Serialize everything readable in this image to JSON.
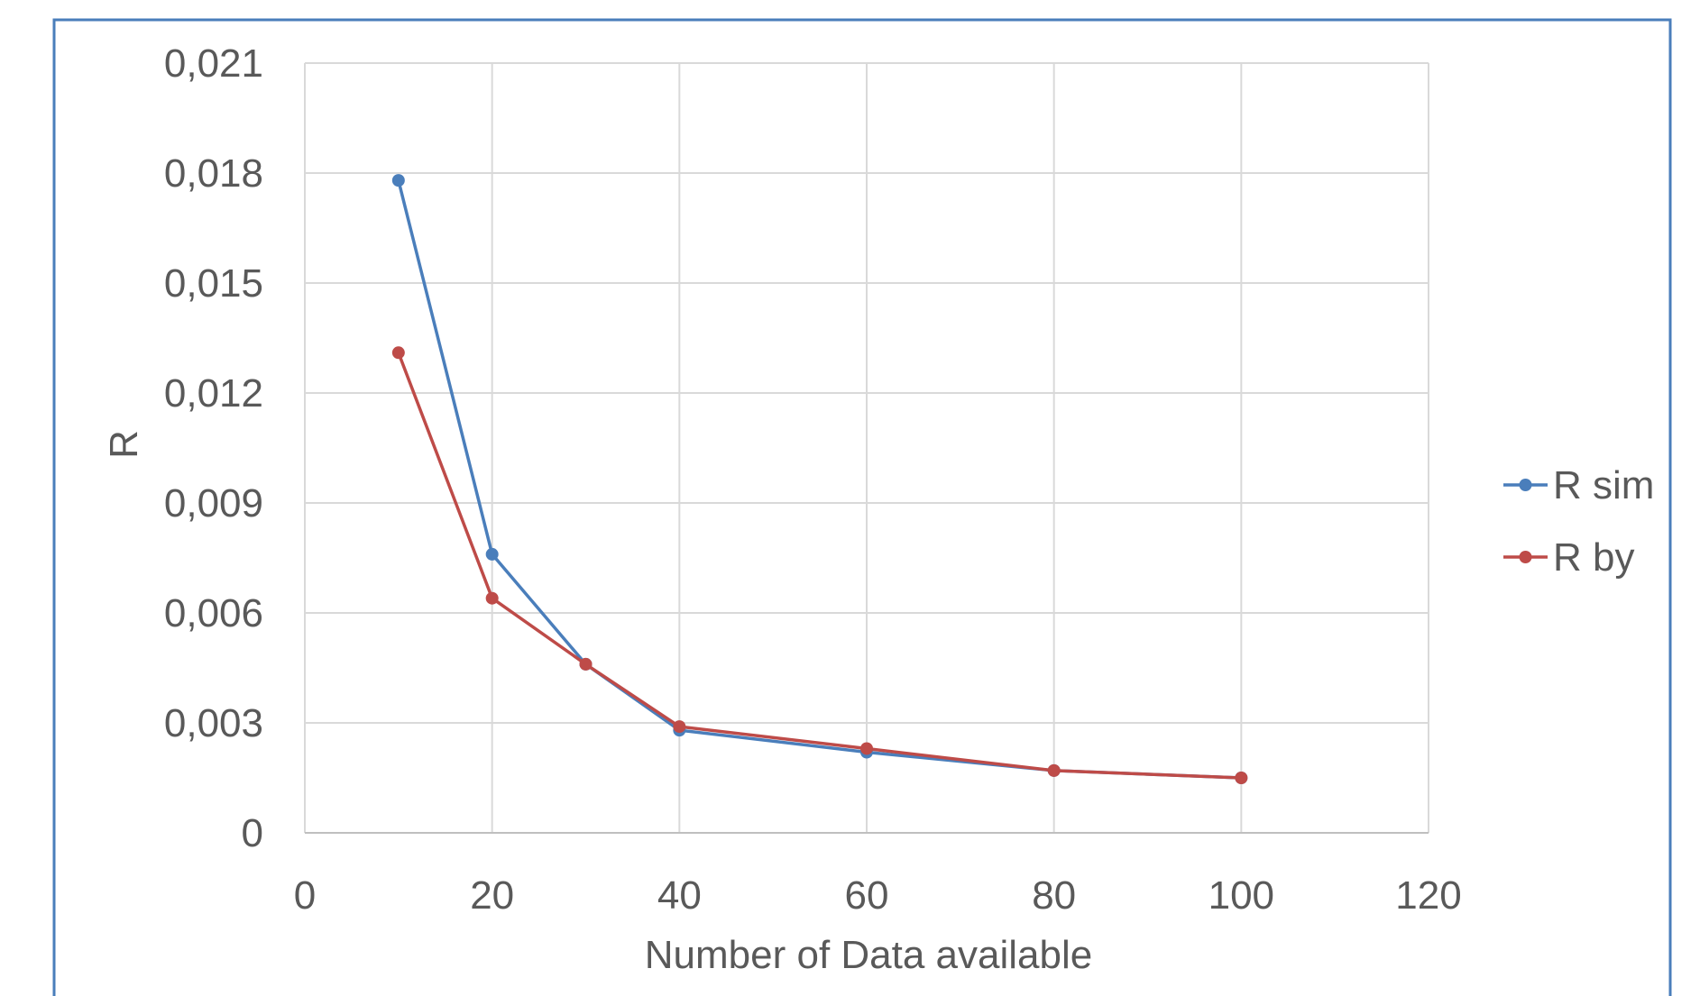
{
  "chart_data": {
    "type": "line",
    "title": "",
    "xlabel": "Number of Data available",
    "ylabel": "R",
    "xlim": [
      0,
      120
    ],
    "ylim": [
      0,
      0.021
    ],
    "x_ticks": [
      0,
      20,
      40,
      60,
      80,
      100,
      120
    ],
    "x_tick_labels": [
      "0",
      "20",
      "40",
      "60",
      "80",
      "100",
      "120"
    ],
    "y_ticks": [
      0,
      0.003,
      0.006,
      0.009,
      0.012,
      0.015,
      0.018,
      0.021
    ],
    "y_tick_labels": [
      "0",
      "0,003",
      "0,006",
      "0,009",
      "0,012",
      "0,015",
      "0,018",
      "0,021"
    ],
    "grid": true,
    "legend_position": "right",
    "x": [
      10,
      20,
      30,
      40,
      60,
      80,
      100
    ],
    "series": [
      {
        "name": "R sim",
        "color": "#4a7ebb",
        "values": [
          0.0178,
          0.0076,
          0.0046,
          0.0028,
          0.0022,
          0.0017,
          0.0015
        ]
      },
      {
        "name": "R by",
        "color": "#be4b48",
        "values": [
          0.0131,
          0.0064,
          0.0046,
          0.0029,
          0.0023,
          0.0017,
          0.0015
        ]
      }
    ]
  }
}
